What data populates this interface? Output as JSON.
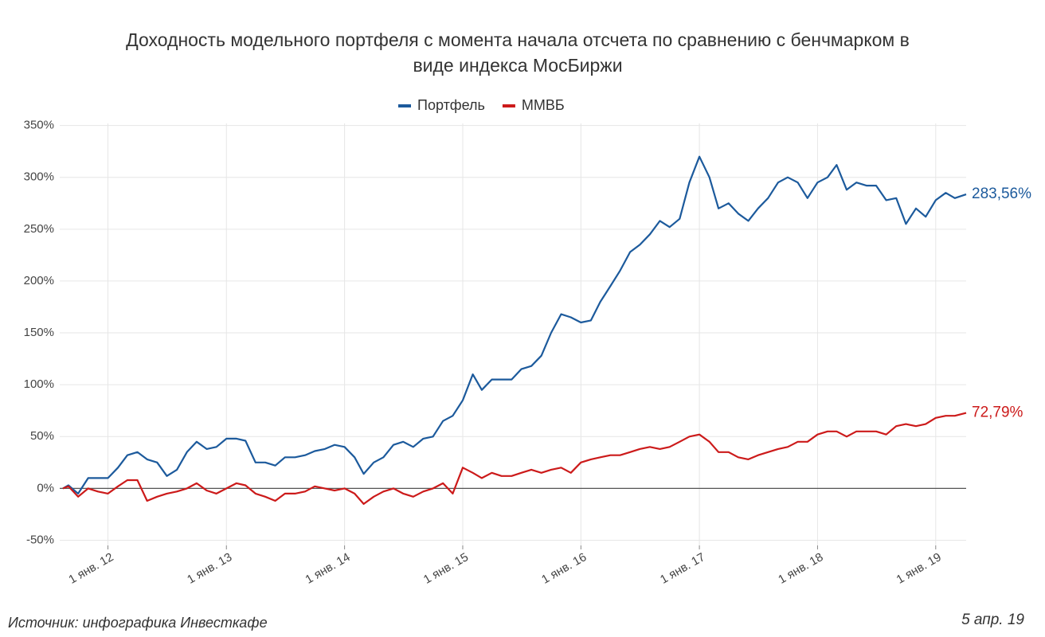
{
  "chart_data": {
    "type": "line",
    "title": "Доходность модельного портфеля с момента начала отсчета по сравнению с бенчмарком в виде индекса МосБиржи",
    "source": "Источник: инфографика Инвесткафе",
    "date_note": "5 апр. 19",
    "legend": "top",
    "grid": true,
    "x": [
      "2011-08-15",
      "2011-09-01",
      "2011-10-01",
      "2011-11-01",
      "2011-12-01",
      "2012-01-01",
      "2012-02-01",
      "2012-03-01",
      "2012-04-01",
      "2012-05-01",
      "2012-06-01",
      "2012-07-01",
      "2012-08-01",
      "2012-09-01",
      "2012-10-01",
      "2012-11-01",
      "2012-12-01",
      "2013-01-01",
      "2013-02-01",
      "2013-03-01",
      "2013-04-01",
      "2013-05-01",
      "2013-06-01",
      "2013-07-01",
      "2013-08-01",
      "2013-09-01",
      "2013-10-01",
      "2013-11-01",
      "2013-12-01",
      "2014-01-01",
      "2014-02-01",
      "2014-03-01",
      "2014-04-01",
      "2014-05-01",
      "2014-06-01",
      "2014-07-01",
      "2014-08-01",
      "2014-09-01",
      "2014-10-01",
      "2014-11-01",
      "2014-12-01",
      "2015-01-01",
      "2015-02-01",
      "2015-03-01",
      "2015-04-01",
      "2015-05-01",
      "2015-06-01",
      "2015-07-01",
      "2015-08-01",
      "2015-09-01",
      "2015-10-01",
      "2015-11-01",
      "2015-12-01",
      "2016-01-01",
      "2016-02-01",
      "2016-03-01",
      "2016-04-01",
      "2016-05-01",
      "2016-06-01",
      "2016-07-01",
      "2016-08-01",
      "2016-09-01",
      "2016-10-01",
      "2016-11-01",
      "2016-12-01",
      "2017-01-01",
      "2017-02-01",
      "2017-03-01",
      "2017-04-01",
      "2017-05-01",
      "2017-06-01",
      "2017-07-01",
      "2017-08-01",
      "2017-09-01",
      "2017-10-01",
      "2017-11-01",
      "2017-12-01",
      "2018-01-01",
      "2018-02-01",
      "2018-03-01",
      "2018-04-01",
      "2018-05-01",
      "2018-06-01",
      "2018-07-01",
      "2018-08-01",
      "2018-09-01",
      "2018-10-01",
      "2018-11-01",
      "2018-12-01",
      "2019-01-01",
      "2019-02-01",
      "2019-03-01",
      "2019-04-05"
    ],
    "series": [
      {
        "name": "Портфель",
        "color": "#1c5a9c",
        "end_label": "283,56%",
        "values": [
          0,
          3,
          -5,
          10,
          10,
          10,
          20,
          32,
          35,
          28,
          25,
          12,
          18,
          35,
          45,
          38,
          40,
          48,
          48,
          46,
          25,
          25,
          22,
          30,
          30,
          32,
          36,
          38,
          42,
          40,
          30,
          14,
          25,
          30,
          42,
          45,
          40,
          48,
          50,
          65,
          70,
          85,
          110,
          95,
          105,
          105,
          105,
          115,
          118,
          128,
          150,
          168,
          165,
          160,
          162,
          180,
          195,
          210,
          228,
          235,
          245,
          258,
          252,
          260,
          295,
          320,
          300,
          270,
          275,
          265,
          258,
          270,
          280,
          295,
          300,
          295,
          280,
          295,
          300,
          312,
          288,
          295,
          292,
          292,
          278,
          280,
          255,
          270,
          262,
          278,
          285,
          280,
          283.56
        ]
      },
      {
        "name": "ММВБ",
        "color": "#cc1a1a",
        "end_label": "72,79%",
        "values": [
          0,
          2,
          -8,
          0,
          -3,
          -5,
          2,
          8,
          8,
          -12,
          -8,
          -5,
          -3,
          0,
          5,
          -2,
          -5,
          0,
          5,
          3,
          -5,
          -8,
          -12,
          -5,
          -5,
          -3,
          2,
          0,
          -2,
          0,
          -5,
          -15,
          -8,
          -3,
          0,
          -5,
          -8,
          -3,
          0,
          5,
          -5,
          20,
          15,
          10,
          15,
          12,
          12,
          15,
          18,
          15,
          18,
          20,
          15,
          25,
          28,
          30,
          32,
          32,
          35,
          38,
          40,
          38,
          40,
          45,
          50,
          52,
          45,
          35,
          35,
          30,
          28,
          32,
          35,
          38,
          40,
          45,
          45,
          52,
          55,
          55,
          50,
          55,
          55,
          55,
          52,
          60,
          62,
          60,
          62,
          68,
          70,
          70,
          72.79
        ]
      }
    ],
    "xlim": [
      "2011-08-15",
      "2019-04-05"
    ],
    "xticks": [
      {
        "value": "2012-01-01",
        "label": "1 янв. 12"
      },
      {
        "value": "2013-01-01",
        "label": "1 янв. 13"
      },
      {
        "value": "2014-01-01",
        "label": "1 янв. 14"
      },
      {
        "value": "2015-01-01",
        "label": "1 янв. 15"
      },
      {
        "value": "2016-01-01",
        "label": "1 янв. 16"
      },
      {
        "value": "2017-01-01",
        "label": "1 янв. 17"
      },
      {
        "value": "2018-01-01",
        "label": "1 янв. 18"
      },
      {
        "value": "2019-01-01",
        "label": "1 янв. 19"
      }
    ],
    "ylim": [
      -55,
      352
    ],
    "yticks": [
      {
        "value": -50,
        "label": "-50%"
      },
      {
        "value": 0,
        "label": "0%"
      },
      {
        "value": 50,
        "label": "50%"
      },
      {
        "value": 100,
        "label": "100%"
      },
      {
        "value": 150,
        "label": "150%"
      },
      {
        "value": 200,
        "label": "200%"
      },
      {
        "value": 250,
        "label": "250%"
      },
      {
        "value": 300,
        "label": "300%"
      },
      {
        "value": 350,
        "label": "350%"
      }
    ]
  }
}
